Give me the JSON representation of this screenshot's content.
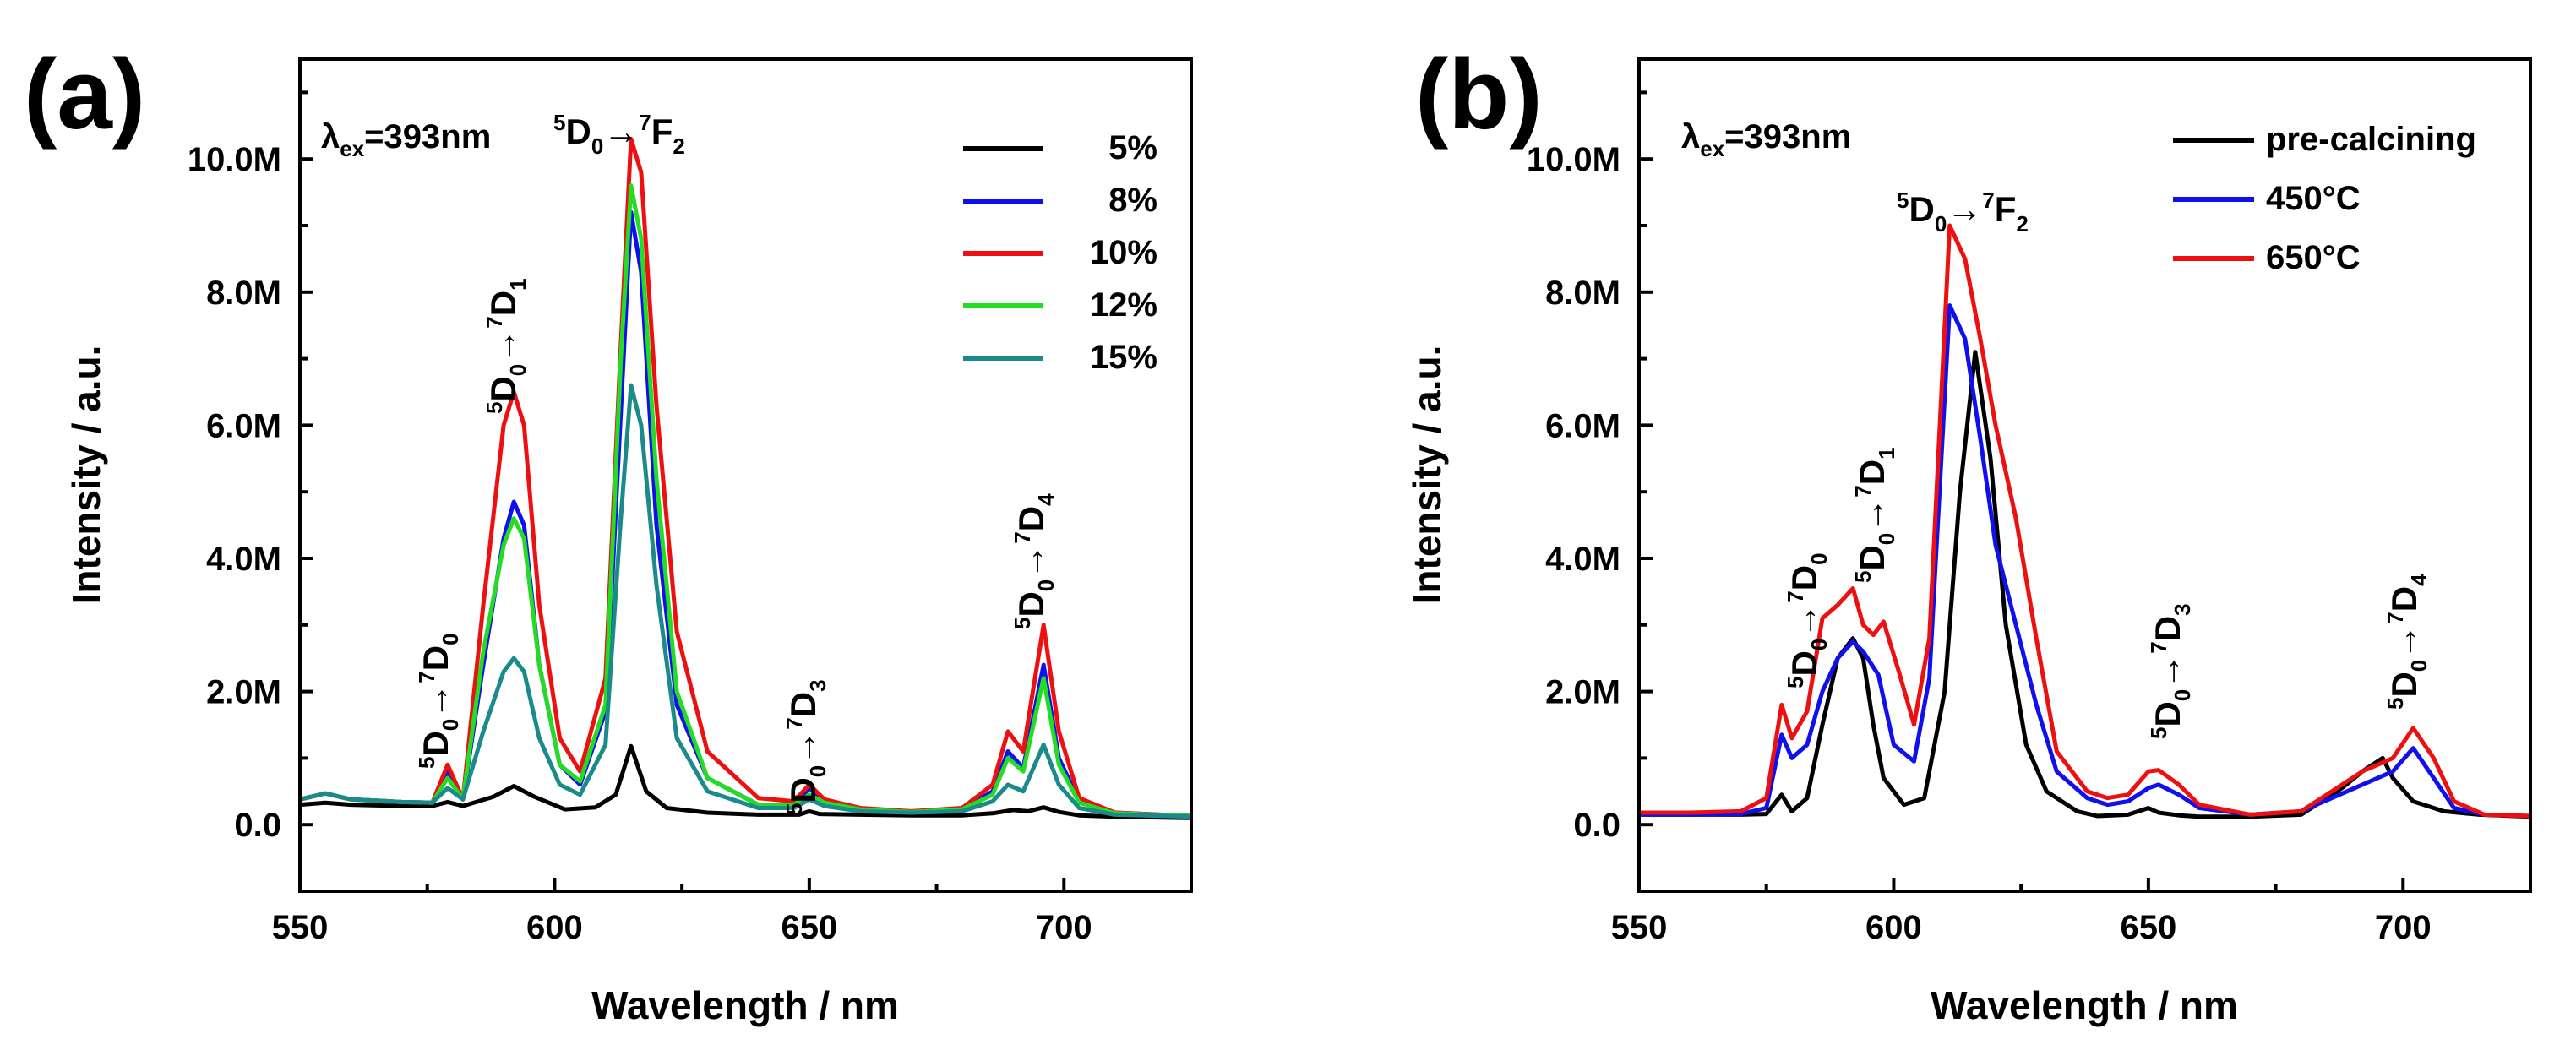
{
  "chart_data": [
    {
      "type": "line",
      "panel_label": "(a)",
      "xlabel": "Wavelength / nm",
      "ylabel": "Intensity / a.u.",
      "xlim": [
        550,
        725
      ],
      "ylim": [
        -1000000,
        11500000
      ],
      "x_ticks": [
        550,
        600,
        650,
        700
      ],
      "x_tick_labels": [
        "550",
        "600",
        "650",
        "700"
      ],
      "y_ticks": [
        0,
        2000000,
        4000000,
        6000000,
        8000000,
        10000000
      ],
      "y_tick_labels": [
        "0.0",
        "2.0M",
        "4.0M",
        "6.0M",
        "8.0M",
        "10.0M"
      ],
      "excitation_label": "λex=393nm",
      "legend_position": "top-right",
      "transition_labels": [
        "5D0→7D0",
        "5D0→7D1",
        "5D0→7F2",
        "5D0→7D3",
        "5D0→7D4"
      ],
      "series": [
        {
          "name": "5%",
          "color": "#000000",
          "x": [
            550,
            555,
            560,
            570,
            576,
            579,
            582,
            588,
            592,
            596,
            602,
            608,
            612,
            615,
            618,
            622,
            630,
            640,
            648,
            650,
            652,
            660,
            670,
            680,
            686,
            690,
            693,
            696,
            699,
            703,
            710,
            725
          ],
          "y": [
            300000,
            330000,
            300000,
            280000,
            280000,
            340000,
            280000,
            420000,
            580000,
            420000,
            230000,
            260000,
            450000,
            1180000,
            500000,
            250000,
            180000,
            150000,
            150000,
            200000,
            160000,
            150000,
            140000,
            140000,
            170000,
            220000,
            200000,
            260000,
            190000,
            140000,
            120000,
            100000
          ]
        },
        {
          "name": "8%",
          "color": "#1010ee",
          "x": [
            550,
            555,
            560,
            570,
            576,
            579,
            582,
            586,
            590,
            592,
            594,
            597,
            601,
            605,
            610,
            613,
            615,
            617,
            620,
            624,
            630,
            640,
            647,
            650,
            653,
            660,
            670,
            680,
            686,
            689,
            692,
            696,
            699,
            703,
            710,
            725
          ],
          "y": [
            380000,
            470000,
            380000,
            340000,
            330000,
            800000,
            380000,
            2400000,
            4300000,
            4850000,
            4500000,
            2400000,
            900000,
            600000,
            1700000,
            6200000,
            9200000,
            8300000,
            4500000,
            1800000,
            700000,
            300000,
            300000,
            550000,
            350000,
            230000,
            190000,
            230000,
            500000,
            1100000,
            850000,
            2400000,
            1000000,
            350000,
            180000,
            130000
          ]
        },
        {
          "name": "10%",
          "color": "#ee1010",
          "x": [
            550,
            555,
            560,
            570,
            576,
            579,
            582,
            586,
            590,
            592,
            594,
            597,
            601,
            605,
            610,
            613,
            615,
            617,
            620,
            624,
            630,
            640,
            647,
            650,
            653,
            660,
            670,
            680,
            686,
            689,
            692,
            696,
            699,
            703,
            710,
            725
          ],
          "y": [
            380000,
            470000,
            380000,
            340000,
            330000,
            900000,
            380000,
            3300000,
            6000000,
            6500000,
            6000000,
            3300000,
            1300000,
            800000,
            2200000,
            7200000,
            10300000,
            9800000,
            6300000,
            2900000,
            1100000,
            400000,
            350000,
            600000,
            380000,
            250000,
            200000,
            250000,
            600000,
            1400000,
            1100000,
            3000000,
            1400000,
            400000,
            180000,
            130000
          ]
        },
        {
          "name": "12%",
          "color": "#22dd22",
          "x": [
            550,
            555,
            560,
            570,
            576,
            579,
            582,
            586,
            590,
            592,
            594,
            597,
            601,
            605,
            610,
            613,
            615,
            617,
            620,
            624,
            630,
            640,
            647,
            650,
            653,
            660,
            670,
            680,
            686,
            689,
            692,
            696,
            699,
            703,
            710,
            725
          ],
          "y": [
            380000,
            470000,
            380000,
            340000,
            330000,
            700000,
            380000,
            2600000,
            4200000,
            4600000,
            4300000,
            2400000,
            900000,
            650000,
            1800000,
            7000000,
            9600000,
            8800000,
            5200000,
            2000000,
            700000,
            300000,
            300000,
            450000,
            330000,
            230000,
            190000,
            230000,
            450000,
            1000000,
            800000,
            2200000,
            900000,
            330000,
            170000,
            130000
          ]
        },
        {
          "name": "15%",
          "color": "#1a8a8a",
          "x": [
            550,
            555,
            560,
            570,
            576,
            579,
            582,
            586,
            590,
            592,
            594,
            597,
            601,
            605,
            610,
            613,
            615,
            617,
            620,
            624,
            630,
            640,
            647,
            650,
            653,
            660,
            670,
            680,
            686,
            689,
            692,
            696,
            699,
            703,
            710,
            725
          ],
          "y": [
            380000,
            470000,
            380000,
            340000,
            330000,
            550000,
            380000,
            1400000,
            2300000,
            2500000,
            2300000,
            1300000,
            600000,
            450000,
            1200000,
            4600000,
            6600000,
            6000000,
            3600000,
            1300000,
            500000,
            250000,
            250000,
            380000,
            280000,
            200000,
            180000,
            200000,
            350000,
            600000,
            500000,
            1200000,
            600000,
            250000,
            150000,
            120000
          ]
        }
      ]
    },
    {
      "type": "line",
      "panel_label": "(b)",
      "xlabel": "Wavelength / nm",
      "ylabel": "Intensity / a.u.",
      "xlim": [
        550,
        725
      ],
      "ylim": [
        -1000000,
        11500000
      ],
      "x_ticks": [
        550,
        600,
        650,
        700
      ],
      "x_tick_labels": [
        "550",
        "600",
        "650",
        "700"
      ],
      "y_ticks": [
        0,
        2000000,
        4000000,
        6000000,
        8000000,
        10000000
      ],
      "y_tick_labels": [
        "0.0",
        "2.0M",
        "4.0M",
        "6.0M",
        "8.0M",
        "10.0M"
      ],
      "excitation_label": "λex=393nm",
      "legend_position": "top-right",
      "transition_labels": [
        "5D0→7D0",
        "5D0→7D1",
        "5D0→7F2",
        "5D0→7D3",
        "5D0→7D4"
      ],
      "series": [
        {
          "name": "pre-calcining",
          "color": "#000000",
          "x": [
            550,
            560,
            570,
            575,
            578,
            580,
            583,
            586,
            589,
            592,
            594,
            596,
            598,
            602,
            606,
            610,
            613,
            616,
            619,
            622,
            626,
            630,
            636,
            640,
            646,
            650,
            652,
            656,
            660,
            670,
            680,
            688,
            692,
            696,
            698,
            702,
            708,
            715,
            725
          ],
          "y": [
            150000,
            150000,
            150000,
            160000,
            450000,
            200000,
            400000,
            1500000,
            2500000,
            2800000,
            2500000,
            1500000,
            700000,
            300000,
            400000,
            2000000,
            5000000,
            7100000,
            5500000,
            3000000,
            1200000,
            500000,
            200000,
            130000,
            150000,
            250000,
            180000,
            140000,
            120000,
            120000,
            150000,
            550000,
            800000,
            1000000,
            700000,
            350000,
            200000,
            150000,
            120000
          ]
        },
        {
          "name": "450°C",
          "color": "#1010ee",
          "x": [
            550,
            560,
            570,
            575,
            578,
            580,
            583,
            586,
            589,
            592,
            594,
            597,
            600,
            604,
            607,
            611,
            614,
            617,
            620,
            624,
            628,
            632,
            638,
            642,
            646,
            650,
            652,
            656,
            660,
            670,
            680,
            686,
            692,
            698,
            702,
            706,
            710,
            716,
            725
          ],
          "y": [
            150000,
            150000,
            160000,
            250000,
            1350000,
            1000000,
            1200000,
            2000000,
            2500000,
            2750000,
            2600000,
            2250000,
            1200000,
            950000,
            2200000,
            7800000,
            7300000,
            5800000,
            4200000,
            3000000,
            1800000,
            800000,
            400000,
            300000,
            350000,
            550000,
            600000,
            450000,
            250000,
            150000,
            200000,
            400000,
            600000,
            800000,
            1150000,
            700000,
            250000,
            150000,
            130000
          ]
        },
        {
          "name": "650°C",
          "color": "#ee1010",
          "x": [
            550,
            560,
            570,
            575,
            578,
            580,
            583,
            586,
            589,
            592,
            594,
            596,
            598,
            601,
            604,
            607,
            611,
            614,
            617,
            620,
            624,
            628,
            632,
            638,
            642,
            646,
            650,
            652,
            656,
            660,
            670,
            680,
            686,
            692,
            698,
            702,
            706,
            710,
            716,
            725
          ],
          "y": [
            180000,
            180000,
            200000,
            400000,
            1800000,
            1300000,
            1700000,
            3100000,
            3300000,
            3550000,
            3000000,
            2850000,
            3050000,
            2300000,
            1500000,
            2800000,
            9000000,
            8500000,
            7300000,
            6000000,
            4600000,
            2800000,
            1100000,
            500000,
            400000,
            450000,
            800000,
            820000,
            600000,
            300000,
            150000,
            200000,
            500000,
            800000,
            1000000,
            1450000,
            1000000,
            350000,
            150000,
            130000
          ]
        }
      ]
    }
  ]
}
